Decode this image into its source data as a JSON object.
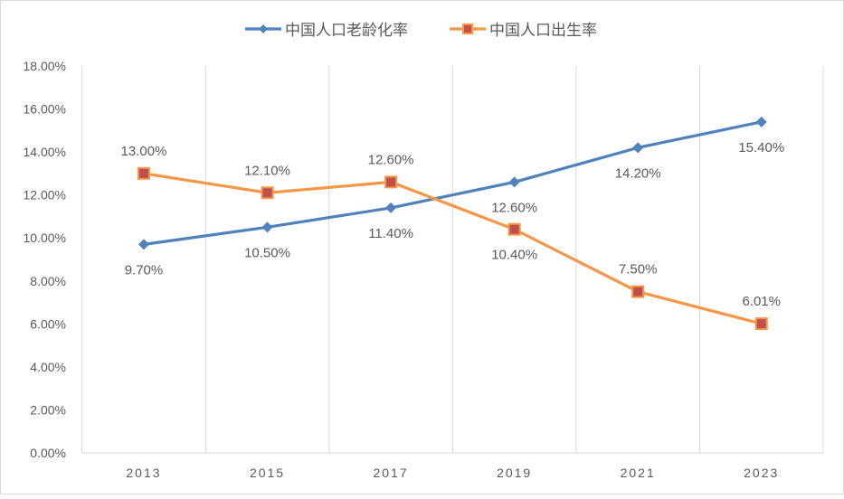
{
  "chart_data": {
    "type": "line",
    "title": "",
    "xlabel": "",
    "ylabel": "",
    "categories": [
      "2013",
      "2015",
      "2017",
      "2019",
      "2021",
      "2023"
    ],
    "ylim": [
      0,
      18
    ],
    "yticks": [
      "0.00%",
      "2.00%",
      "4.00%",
      "6.00%",
      "8.00%",
      "10.00%",
      "12.00%",
      "14.00%",
      "16.00%",
      "18.00%"
    ],
    "grid": "vertical",
    "legend": "top",
    "series": [
      {
        "name": "中国人口老龄化率",
        "color": "#4f81bd",
        "marker": "diamond",
        "label_pos": "below",
        "values": [
          9.7,
          10.5,
          11.4,
          12.6,
          14.2,
          15.4
        ],
        "labels": [
          "9.70%",
          "10.50%",
          "11.40%",
          "12.60%",
          "14.20%",
          "15.40%"
        ]
      },
      {
        "name": "中国人口出生率",
        "color": "#f79646",
        "marker_fill": "#c0504d",
        "marker": "square",
        "label_pos": "above",
        "values": [
          13.0,
          12.1,
          12.6,
          10.4,
          7.5,
          6.01
        ],
        "labels": [
          "13.00%",
          "12.10%",
          "12.60%",
          "10.40%",
          "7.50%",
          "6.01%"
        ]
      }
    ]
  }
}
